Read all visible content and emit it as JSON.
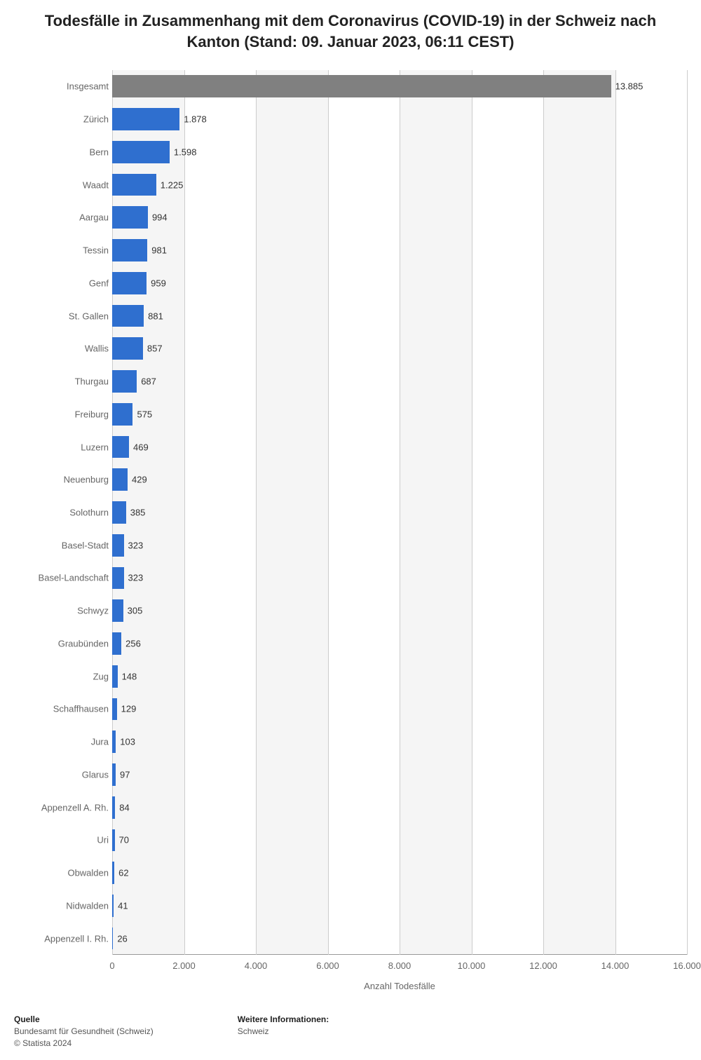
{
  "title": "Todesfälle in Zusammenhang mit dem Coronavirus (COVID-19) in der Schweiz nach Kanton (Stand: 09. Januar 2023, 06:11 CEST)",
  "chart": {
    "type": "bar-horizontal",
    "x_axis_label": "Anzahl Todesfälle",
    "x_min": 0,
    "x_max": 16000,
    "x_tick_step": 2000,
    "x_ticks": [
      "0",
      "2.000",
      "4.000",
      "6.000",
      "8.000",
      "10.000",
      "12.000",
      "14.000",
      "16.000"
    ],
    "band_color_light": "#ffffff",
    "band_color_dark": "#f5f5f5",
    "gridline_color": "#cccccc",
    "bar_color_default": "#2f6fcf",
    "bar_color_total": "#808080",
    "text_color": "#666666",
    "value_text_color": "#333333",
    "background_color": "#ffffff",
    "cat_label_fontsize": 13,
    "value_label_fontsize": 13,
    "tick_label_fontsize": 13,
    "categories": [
      {
        "label": "Insgesamt",
        "value": 13885,
        "display": "13.885",
        "color": "#808080"
      },
      {
        "label": "Zürich",
        "value": 1878,
        "display": "1.878",
        "color": "#2f6fcf"
      },
      {
        "label": "Bern",
        "value": 1598,
        "display": "1.598",
        "color": "#2f6fcf"
      },
      {
        "label": "Waadt",
        "value": 1225,
        "display": "1.225",
        "color": "#2f6fcf"
      },
      {
        "label": "Aargau",
        "value": 994,
        "display": "994",
        "color": "#2f6fcf"
      },
      {
        "label": "Tessin",
        "value": 981,
        "display": "981",
        "color": "#2f6fcf"
      },
      {
        "label": "Genf",
        "value": 959,
        "display": "959",
        "color": "#2f6fcf"
      },
      {
        "label": "St. Gallen",
        "value": 881,
        "display": "881",
        "color": "#2f6fcf"
      },
      {
        "label": "Wallis",
        "value": 857,
        "display": "857",
        "color": "#2f6fcf"
      },
      {
        "label": "Thurgau",
        "value": 687,
        "display": "687",
        "color": "#2f6fcf"
      },
      {
        "label": "Freiburg",
        "value": 575,
        "display": "575",
        "color": "#2f6fcf"
      },
      {
        "label": "Luzern",
        "value": 469,
        "display": "469",
        "color": "#2f6fcf"
      },
      {
        "label": "Neuenburg",
        "value": 429,
        "display": "429",
        "color": "#2f6fcf"
      },
      {
        "label": "Solothurn",
        "value": 385,
        "display": "385",
        "color": "#2f6fcf"
      },
      {
        "label": "Basel-Stadt",
        "value": 323,
        "display": "323",
        "color": "#2f6fcf"
      },
      {
        "label": "Basel-Landschaft",
        "value": 323,
        "display": "323",
        "color": "#2f6fcf"
      },
      {
        "label": "Schwyz",
        "value": 305,
        "display": "305",
        "color": "#2f6fcf"
      },
      {
        "label": "Graubünden",
        "value": 256,
        "display": "256",
        "color": "#2f6fcf"
      },
      {
        "label": "Zug",
        "value": 148,
        "display": "148",
        "color": "#2f6fcf"
      },
      {
        "label": "Schaffhausen",
        "value": 129,
        "display": "129",
        "color": "#2f6fcf"
      },
      {
        "label": "Jura",
        "value": 103,
        "display": "103",
        "color": "#2f6fcf"
      },
      {
        "label": "Glarus",
        "value": 97,
        "display": "97",
        "color": "#2f6fcf"
      },
      {
        "label": "Appenzell A. Rh.",
        "value": 84,
        "display": "84",
        "color": "#2f6fcf"
      },
      {
        "label": "Uri",
        "value": 70,
        "display": "70",
        "color": "#2f6fcf"
      },
      {
        "label": "Obwalden",
        "value": 62,
        "display": "62",
        "color": "#2f6fcf"
      },
      {
        "label": "Nidwalden",
        "value": 41,
        "display": "41",
        "color": "#2f6fcf"
      },
      {
        "label": "Appenzell I. Rh.",
        "value": 26,
        "display": "26",
        "color": "#2f6fcf"
      }
    ]
  },
  "footer": {
    "source_heading": "Quelle",
    "source_line1": "Bundesamt für Gesundheit (Schweiz)",
    "source_line2": "© Statista 2024",
    "info_heading": "Weitere Informationen:",
    "info_line1": "Schweiz"
  }
}
